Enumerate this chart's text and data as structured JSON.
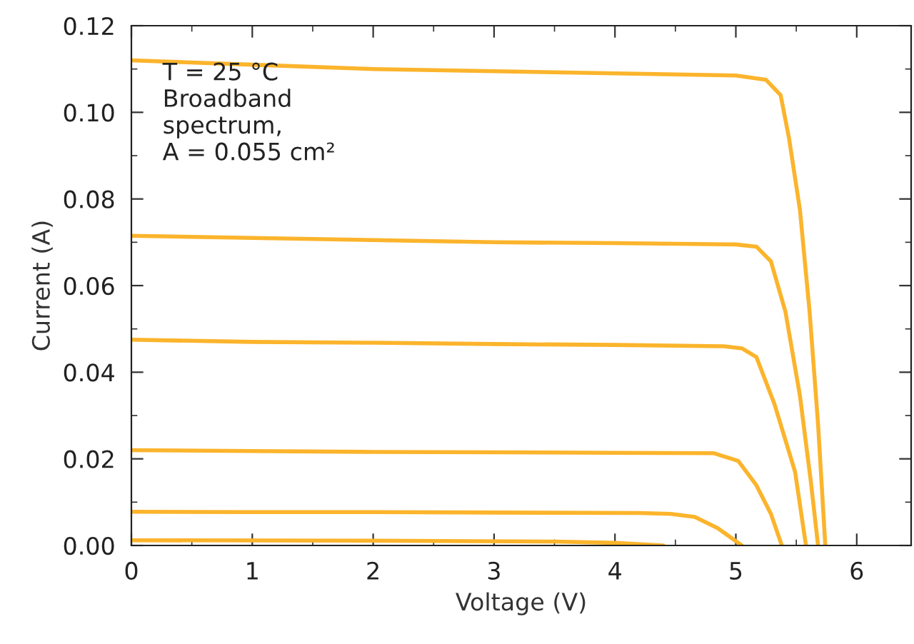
{
  "chart_data": {
    "type": "line",
    "xlabel": "Voltage (V)",
    "ylabel": "Current (A)",
    "annotations": [
      "T = 25 °C\nBroadband\nspectrum,\nA = 0.055 cm²"
    ],
    "xlim": [
      0,
      6.45
    ],
    "ylim": [
      0,
      0.12
    ],
    "xticks": [
      0,
      {
        "value": 0.5,
        "label": null
      },
      1,
      {
        "value": 1.5,
        "label": null
      },
      2,
      {
        "value": 2.5,
        "label": null
      },
      3,
      {
        "value": 3.5,
        "label": null
      },
      4,
      {
        "value": 4.5,
        "label": null
      },
      5,
      {
        "value": 5.5,
        "label": null
      },
      6
    ],
    "yticks": [
      {
        "value": 0,
        "label": "0.00"
      },
      {
        "value": 0.01,
        "label": null
      },
      {
        "value": 0.02,
        "label": "0.02"
      },
      {
        "value": 0.03,
        "label": null
      },
      {
        "value": 0.04,
        "label": "0.04"
      },
      {
        "value": 0.05,
        "label": null
      },
      {
        "value": 0.06,
        "label": "0.06"
      },
      {
        "value": 0.07,
        "label": null
      },
      {
        "value": 0.08,
        "label": "0.08"
      },
      {
        "value": 0.09,
        "label": null
      },
      {
        "value": 0.1,
        "label": "0.10"
      },
      {
        "value": 0.11,
        "label": null
      },
      {
        "value": 0.12,
        "label": "0.12"
      }
    ],
    "marker": "none",
    "line_style": "solid",
    "series": [
      {
        "color": "#fbb42c",
        "x": [
          0,
          1,
          2,
          3,
          4,
          5.0,
          5.25,
          5.37,
          5.44,
          5.53,
          5.61,
          5.68,
          5.74
        ],
        "values": [
          0.112,
          0.111,
          0.11,
          0.1095,
          0.109,
          0.1085,
          0.1075,
          0.104,
          0.094,
          0.0775,
          0.054,
          0.028,
          0
        ]
      },
      {
        "color": "#fbb42c",
        "x": [
          0,
          1,
          2,
          3,
          4,
          5.0,
          5.17,
          5.29,
          5.41,
          5.53,
          5.62,
          5.68
        ],
        "values": [
          0.0715,
          0.071,
          0.0705,
          0.07,
          0.0698,
          0.0695,
          0.069,
          0.0656,
          0.054,
          0.0346,
          0.0148,
          0
        ]
      },
      {
        "color": "#fbb42c",
        "x": [
          0,
          1,
          2,
          3,
          4,
          4.9,
          5.05,
          5.17,
          5.32,
          5.49,
          5.58
        ],
        "values": [
          0.0475,
          0.047,
          0.0468,
          0.0465,
          0.0463,
          0.046,
          0.0455,
          0.0435,
          0.0326,
          0.017,
          0
        ]
      },
      {
        "color": "#fbb42c",
        "x": [
          0,
          1,
          2,
          3,
          4,
          4.82,
          5.02,
          5.17,
          5.29,
          5.38
        ],
        "values": [
          0.022,
          0.0218,
          0.0216,
          0.0215,
          0.0214,
          0.0213,
          0.0195,
          0.0139,
          0.0073,
          0
        ]
      },
      {
        "color": "#fbb42c",
        "x": [
          0,
          1,
          2,
          3,
          4.2,
          4.46,
          4.66,
          4.85,
          5.05
        ],
        "values": [
          0.0078,
          0.0077,
          0.0077,
          0.0076,
          0.0075,
          0.0073,
          0.0066,
          0.004,
          0
        ]
      },
      {
        "color": "#fbb42c",
        "x": [
          0,
          2,
          3.5,
          4,
          4.4
        ],
        "values": [
          0.0012,
          0.0011,
          0.0009,
          0.0006,
          0
        ]
      }
    ]
  }
}
